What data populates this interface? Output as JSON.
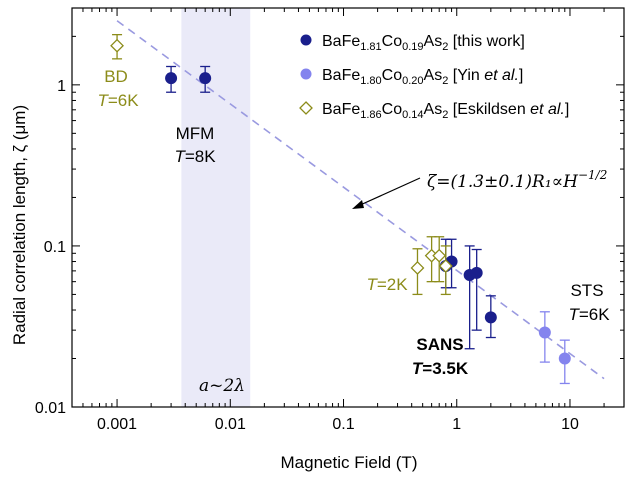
{
  "chart_data": {
    "type": "scatter",
    "xscale": "log",
    "yscale": "log",
    "xlim": [
      0.0004,
      30
    ],
    "ylim": [
      0.01,
      3
    ],
    "xlabel": "Magnetic Field (T)",
    "ylabel": "Radial correlation length, ζ (μm)",
    "x_ticks": [
      "0.001",
      "0.01",
      "0.1",
      "1",
      "10"
    ],
    "y_ticks": [
      "0.01",
      "0.1",
      "1"
    ],
    "grid": false,
    "legend_position": "top-right",
    "series": [
      {
        "name": "BaFe1.81Co0.19As2 [this work]",
        "color": "#1a1f8c",
        "marker": "filled-circle",
        "points": [
          {
            "x": 0.003,
            "y": 1.1,
            "lo": 0.9,
            "hi": 1.3
          },
          {
            "x": 0.006,
            "y": 1.1,
            "lo": 0.9,
            "hi": 1.3
          },
          {
            "x": 0.8,
            "y": 0.075,
            "lo": 0.055,
            "hi": 0.11
          },
          {
            "x": 0.9,
            "y": 0.08,
            "lo": 0.055,
            "hi": 0.11
          },
          {
            "x": 1.3,
            "y": 0.066,
            "lo": 0.023,
            "hi": 0.1
          },
          {
            "x": 1.5,
            "y": 0.068,
            "lo": 0.03,
            "hi": 0.095
          },
          {
            "x": 2.0,
            "y": 0.036,
            "lo": 0.027,
            "hi": 0.049
          }
        ]
      },
      {
        "name": "BaFe1.80Co0.20As2 [Yin et al.]",
        "color": "#8484ee",
        "marker": "filled-circle",
        "points": [
          {
            "x": 6,
            "y": 0.029,
            "lo": 0.019,
            "hi": 0.039
          },
          {
            "x": 9,
            "y": 0.02,
            "lo": 0.014,
            "hi": 0.026
          }
        ]
      },
      {
        "name": "BaFe1.86Co0.14As2 [Eskildsen et al.]",
        "color": "#8c8c1a",
        "marker": "open-diamond",
        "points": [
          {
            "x": 0.001,
            "y": 1.75,
            "lo": 1.45,
            "hi": 2.05
          },
          {
            "x": 0.45,
            "y": 0.073,
            "lo": 0.05,
            "hi": 0.096
          },
          {
            "x": 0.6,
            "y": 0.087,
            "lo": 0.06,
            "hi": 0.114
          },
          {
            "x": 0.7,
            "y": 0.087,
            "lo": 0.06,
            "hi": 0.114
          },
          {
            "x": 0.8,
            "y": 0.075,
            "lo": 0.05,
            "hi": 0.1
          }
        ]
      }
    ],
    "fit_line": {
      "x": [
        0.001,
        20
      ],
      "y": [
        2.5,
        0.015
      ],
      "color": "#9a9ae0",
      "style": "dashed"
    },
    "shaded_band": {
      "x": [
        0.0037,
        0.015
      ],
      "color": "#eaeaf8"
    },
    "legend": [
      {
        "main": "BaFe",
        "s1": "1.81",
        "mid": "Co",
        "s2": "0.19",
        "tail": "As",
        "s3": "2",
        "ref": " [this work]"
      },
      {
        "main": "BaFe",
        "s1": "1.80",
        "mid": "Co",
        "s2": "0.20",
        "tail": "As",
        "s3": "2",
        "ref_pre": " [Yin ",
        "ref_it": "et al.",
        "ref_post": "]"
      },
      {
        "main": "BaFe",
        "s1": "1.86",
        "mid": "Co",
        "s2": "0.14",
        "tail": "As",
        "s3": "2",
        "ref_pre": " [Eskildsen ",
        "ref_it": "et al.",
        "ref_post": "]"
      }
    ],
    "annotations": {
      "bd": "BD",
      "bd_temp": "=6K",
      "mfm": "MFM",
      "mfm_temp": "=8K",
      "sans": "SANS",
      "sans_temp": "=3.5K",
      "sans_t2": "=2K",
      "sts": "STS",
      "sts_temp": "=6K",
      "band_label": "a~2λ",
      "formula": "ζ=(1.3±0.1)R₁∝H",
      "formula_exp": "−1/2"
    }
  }
}
